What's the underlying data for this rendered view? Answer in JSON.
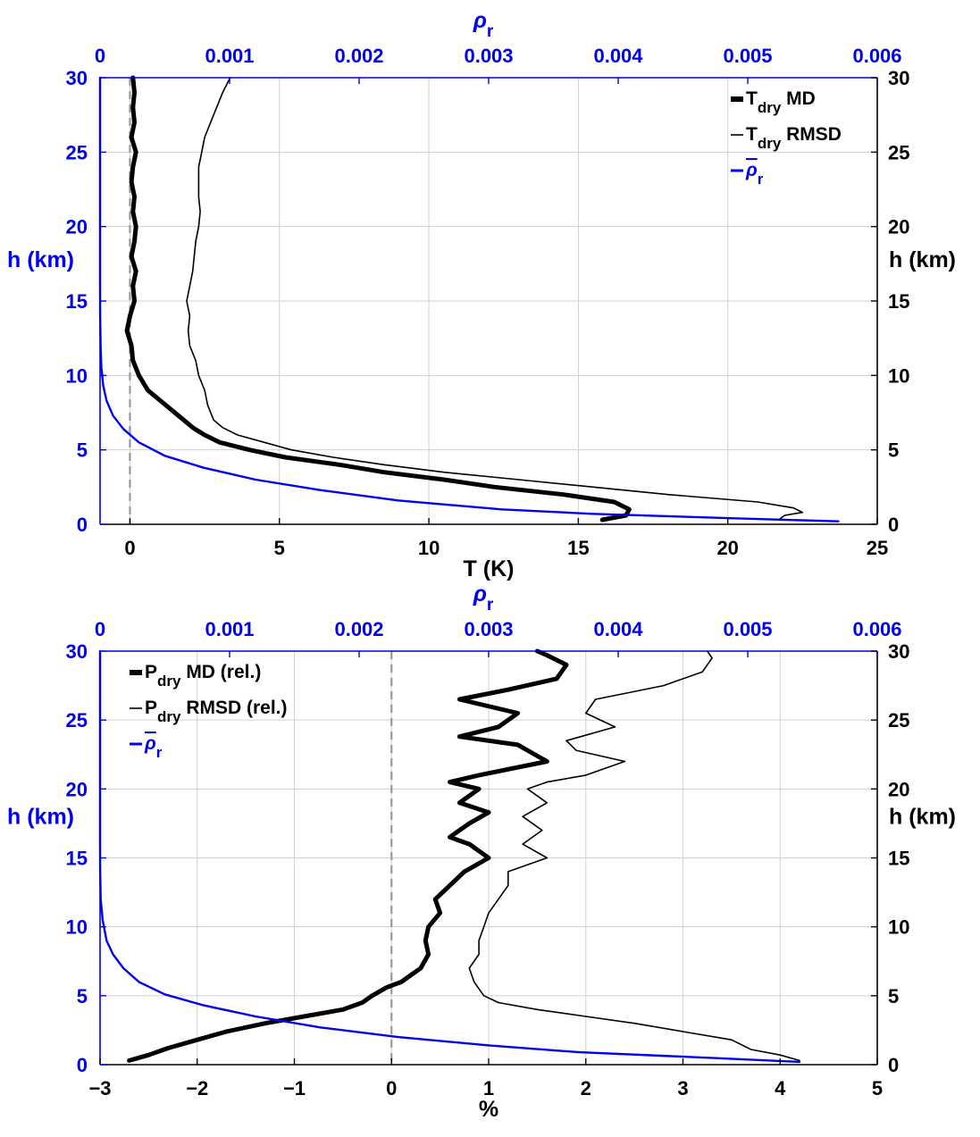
{
  "chart_data": [
    {
      "type": "line",
      "name": "temperature-profile",
      "xlabel": "T (K)",
      "xlim": [
        -1,
        25
      ],
      "xticks": [
        "0",
        "5",
        "10",
        "15",
        "20",
        "25"
      ],
      "top_xlabel": "ρ",
      "top_xlabel_sub": "r",
      "top_xlim": [
        0,
        0.006
      ],
      "top_xticks": [
        "0",
        "0.001",
        "0.002",
        "0.003",
        "0.004",
        "0.005",
        "0.006"
      ],
      "ylabel_left": "h (km)",
      "ylabel_right": "h (km)",
      "ylim": [
        0,
        30
      ],
      "yticks": [
        "0",
        "5",
        "10",
        "15",
        "20",
        "25",
        "30"
      ],
      "grid": true,
      "legend_position": "top-right",
      "legend": [
        {
          "main": "T",
          "sub": "dry",
          "rest": " MD",
          "color": "#000000",
          "style": "thick"
        },
        {
          "main": "T",
          "sub": "dry",
          "rest": " RMSD",
          "color": "#000000",
          "style": "thin"
        },
        {
          "main": "ρ",
          "sub": "r",
          "rest": "",
          "color": "#0000ee",
          "style": "blue",
          "overline": true
        }
      ],
      "zero_line_x": 0,
      "series": [
        {
          "name": "T_dry MD",
          "axis": "bottom",
          "color": "#000000",
          "width": 5,
          "points": [
            [
              15.8,
              0.3
            ],
            [
              16.6,
              0.6
            ],
            [
              16.7,
              1.0
            ],
            [
              16.2,
              1.5
            ],
            [
              14.5,
              2
            ],
            [
              12.2,
              2.5
            ],
            [
              10.5,
              3
            ],
            [
              8.5,
              3.5
            ],
            [
              7,
              4
            ],
            [
              5.2,
              4.5
            ],
            [
              4,
              5
            ],
            [
              3,
              5.5
            ],
            [
              2.5,
              6
            ],
            [
              2.1,
              6.5
            ],
            [
              1.8,
              7
            ],
            [
              1.2,
              8
            ],
            [
              0.6,
              9
            ],
            [
              0.3,
              10
            ],
            [
              0.1,
              11
            ],
            [
              0.05,
              12
            ],
            [
              -0.1,
              13
            ],
            [
              0,
              14
            ],
            [
              0.15,
              15
            ],
            [
              0.1,
              16
            ],
            [
              0.2,
              17
            ],
            [
              0.05,
              18
            ],
            [
              0.15,
              19
            ],
            [
              0.2,
              20
            ],
            [
              0.1,
              21
            ],
            [
              0.15,
              22
            ],
            [
              0.05,
              23
            ],
            [
              0.1,
              24
            ],
            [
              0.2,
              25
            ],
            [
              0.05,
              26
            ],
            [
              0.15,
              27
            ],
            [
              0.1,
              28
            ],
            [
              0.15,
              29
            ],
            [
              0.1,
              30
            ]
          ]
        },
        {
          "name": "T_dry RMSD",
          "axis": "bottom",
          "color": "#000000",
          "width": 1.6,
          "points": [
            [
              21.7,
              0.3
            ],
            [
              21.9,
              0.6
            ],
            [
              22.5,
              0.8
            ],
            [
              22.2,
              1.1
            ],
            [
              21,
              1.5
            ],
            [
              18,
              2
            ],
            [
              15.5,
              2.5
            ],
            [
              13,
              3
            ],
            [
              10.5,
              3.5
            ],
            [
              8.5,
              4
            ],
            [
              6.8,
              4.5
            ],
            [
              5.4,
              5
            ],
            [
              4.5,
              5.5
            ],
            [
              3.6,
              6
            ],
            [
              3.1,
              6.5
            ],
            [
              2.8,
              7
            ],
            [
              2.6,
              8
            ],
            [
              2.5,
              9
            ],
            [
              2.3,
              10
            ],
            [
              2.2,
              11
            ],
            [
              2.0,
              12
            ],
            [
              1.95,
              13
            ],
            [
              2.0,
              14
            ],
            [
              1.9,
              15
            ],
            [
              2.0,
              16
            ],
            [
              2.1,
              17
            ],
            [
              2.15,
              18
            ],
            [
              2.2,
              19
            ],
            [
              2.3,
              20
            ],
            [
              2.35,
              21
            ],
            [
              2.3,
              22
            ],
            [
              2.3,
              23
            ],
            [
              2.3,
              24
            ],
            [
              2.4,
              25
            ],
            [
              2.5,
              26
            ],
            [
              2.7,
              27
            ],
            [
              2.9,
              28
            ],
            [
              3.1,
              29
            ],
            [
              3.35,
              30
            ]
          ]
        },
        {
          "name": "rho_r mean",
          "axis": "top",
          "color": "#0000ee",
          "width": 2.4,
          "points": [
            [
              0.0057,
              0.2
            ],
            [
              0.0049,
              0.4
            ],
            [
              0.0038,
              0.7
            ],
            [
              0.0031,
              1.0
            ],
            [
              0.0023,
              1.6
            ],
            [
              0.0017,
              2.3
            ],
            [
              0.0012,
              3.0
            ],
            [
              0.0008,
              3.8
            ],
            [
              0.0005,
              4.6
            ],
            [
              0.0003,
              5.5
            ],
            [
              0.00018,
              6.4
            ],
            [
              0.0001,
              7.3
            ],
            [
              5e-05,
              8.3
            ],
            [
              2.5e-05,
              9.3
            ],
            [
              1e-05,
              10.5
            ],
            [
              4e-06,
              12
            ],
            [
              1e-06,
              14
            ],
            [
              0,
              16
            ],
            [
              0,
              30
            ]
          ]
        }
      ]
    },
    {
      "type": "line",
      "name": "pressure-profile",
      "xlabel": "%",
      "xlim": [
        -3,
        5
      ],
      "xticks": [
        "−3",
        "−2",
        "−1",
        "0",
        "1",
        "2",
        "3",
        "4",
        "5"
      ],
      "top_xlabel": "ρ",
      "top_xlabel_sub": "r",
      "top_xlim": [
        0,
        0.006
      ],
      "top_xticks": [
        "0",
        "0.001",
        "0.002",
        "0.003",
        "0.004",
        "0.005",
        "0.006"
      ],
      "ylabel_left": "h (km)",
      "ylabel_right": "h (km)",
      "ylim": [
        0,
        30
      ],
      "yticks": [
        "0",
        "5",
        "10",
        "15",
        "20",
        "25",
        "30"
      ],
      "grid": true,
      "legend_position": "top-left",
      "legend": [
        {
          "main": "P",
          "sub": "dry",
          "rest": " MD (rel.)",
          "color": "#000000",
          "style": "thick"
        },
        {
          "main": "P",
          "sub": "dry",
          "rest": " RMSD (rel.)",
          "color": "#000000",
          "style": "thin"
        },
        {
          "main": "ρ",
          "sub": "r",
          "rest": "",
          "color": "#0000ee",
          "style": "blue",
          "overline": true
        }
      ],
      "zero_line_x": 0,
      "series": [
        {
          "name": "P_dry MD (rel.)",
          "axis": "bottom",
          "color": "#000000",
          "width": 5,
          "points": [
            [
              -2.7,
              0.3
            ],
            [
              -2.5,
              0.7
            ],
            [
              -2.3,
              1.2
            ],
            [
              -2.0,
              1.8
            ],
            [
              -1.7,
              2.4
            ],
            [
              -1.3,
              3.0
            ],
            [
              -0.9,
              3.5
            ],
            [
              -0.5,
              4.0
            ],
            [
              -0.3,
              4.5
            ],
            [
              -0.2,
              5.0
            ],
            [
              -0.05,
              5.6
            ],
            [
              0.1,
              6.0
            ],
            [
              0.2,
              6.5
            ],
            [
              0.3,
              7
            ],
            [
              0.38,
              8
            ],
            [
              0.35,
              9
            ],
            [
              0.38,
              10
            ],
            [
              0.5,
              11
            ],
            [
              0.45,
              12
            ],
            [
              0.6,
              13
            ],
            [
              0.75,
              14
            ],
            [
              1.0,
              15
            ],
            [
              0.8,
              16
            ],
            [
              0.6,
              16.5
            ],
            [
              0.8,
              17.5
            ],
            [
              1.0,
              18.3
            ],
            [
              0.7,
              19
            ],
            [
              0.9,
              20
            ],
            [
              0.6,
              20.5
            ],
            [
              0.9,
              21
            ],
            [
              1.6,
              22
            ],
            [
              1.3,
              23.2
            ],
            [
              0.7,
              23.8
            ],
            [
              1.1,
              24.5
            ],
            [
              1.3,
              25.5
            ],
            [
              0.7,
              26.5
            ],
            [
              1.2,
              27.2
            ],
            [
              1.7,
              28
            ],
            [
              1.8,
              29
            ],
            [
              1.6,
              29.7
            ],
            [
              1.5,
              30
            ]
          ]
        },
        {
          "name": "P_dry RMSD (rel.)",
          "axis": "bottom",
          "color": "#000000",
          "width": 1.6,
          "points": [
            [
              4.2,
              0.3
            ],
            [
              4.0,
              0.7
            ],
            [
              3.7,
              1.1
            ],
            [
              3.5,
              1.8
            ],
            [
              3.0,
              2.4
            ],
            [
              2.5,
              3
            ],
            [
              2.0,
              3.5
            ],
            [
              1.5,
              4
            ],
            [
              1.1,
              4.5
            ],
            [
              0.95,
              5
            ],
            [
              0.85,
              6
            ],
            [
              0.8,
              7
            ],
            [
              0.9,
              8
            ],
            [
              0.9,
              9
            ],
            [
              0.95,
              10
            ],
            [
              1.0,
              11
            ],
            [
              1.1,
              12
            ],
            [
              1.2,
              13
            ],
            [
              1.2,
              14
            ],
            [
              1.6,
              15
            ],
            [
              1.35,
              16
            ],
            [
              1.55,
              17
            ],
            [
              1.35,
              18
            ],
            [
              1.6,
              19
            ],
            [
              1.4,
              20
            ],
            [
              1.6,
              20.5
            ],
            [
              2.0,
              21
            ],
            [
              2.4,
              22
            ],
            [
              1.9,
              22.8
            ],
            [
              1.8,
              23.5
            ],
            [
              2.3,
              24.5
            ],
            [
              2.0,
              25.5
            ],
            [
              2.1,
              26.5
            ],
            [
              2.8,
              27.5
            ],
            [
              3.2,
              28.5
            ],
            [
              3.3,
              29.5
            ],
            [
              3.25,
              30
            ]
          ]
        },
        {
          "name": "rho_r mean",
          "axis": "top",
          "color": "#0000ee",
          "width": 2.4,
          "points": [
            [
              0.0054,
              0.2
            ],
            [
              0.0047,
              0.5
            ],
            [
              0.0037,
              0.9
            ],
            [
              0.003,
              1.4
            ],
            [
              0.0023,
              2.0
            ],
            [
              0.0017,
              2.7
            ],
            [
              0.0012,
              3.5
            ],
            [
              0.0008,
              4.3
            ],
            [
              0.0005,
              5.1
            ],
            [
              0.0003,
              6.0
            ],
            [
              0.00018,
              7
            ],
            [
              0.0001,
              8
            ],
            [
              5e-05,
              9
            ],
            [
              2e-05,
              10.5
            ],
            [
              5e-06,
              12
            ],
            [
              1e-06,
              14
            ],
            [
              0,
              16
            ],
            [
              0,
              30
            ]
          ]
        }
      ]
    }
  ]
}
